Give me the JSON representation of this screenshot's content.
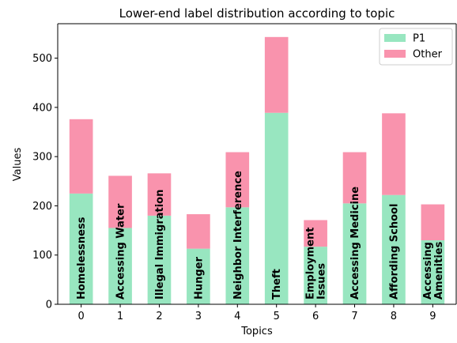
{
  "chart_data": {
    "type": "bar",
    "stacked": true,
    "title": "Lower-end label distribution according to topic",
    "xlabel": "Topics",
    "ylabel": "Values",
    "categories": [
      "0",
      "1",
      "2",
      "3",
      "4",
      "5",
      "6",
      "7",
      "8",
      "9"
    ],
    "bar_labels": [
      [
        "Homelessness"
      ],
      [
        "Accessing Water"
      ],
      [
        "Illegal Immigration"
      ],
      [
        "Hunger"
      ],
      [
        "Neighbor Interference"
      ],
      [
        "Theft"
      ],
      [
        "Employment",
        "Issues"
      ],
      [
        "Accessing Medicine"
      ],
      [
        "Affording School"
      ],
      [
        "Accessing",
        "Amenities"
      ]
    ],
    "series": [
      {
        "name": "P1",
        "color": "#98E6C0",
        "values": [
          225,
          155,
          180,
          113,
          197,
          389,
          117,
          205,
          222,
          130
        ]
      },
      {
        "name": "Other",
        "color": "#F993AD",
        "values": [
          151,
          106,
          86,
          70,
          112,
          154,
          54,
          104,
          166,
          73
        ]
      }
    ],
    "ylim": [
      0,
      570
    ],
    "yticks": [
      0,
      100,
      200,
      300,
      400,
      500
    ],
    "grid": false,
    "legend_position": "top-right"
  }
}
